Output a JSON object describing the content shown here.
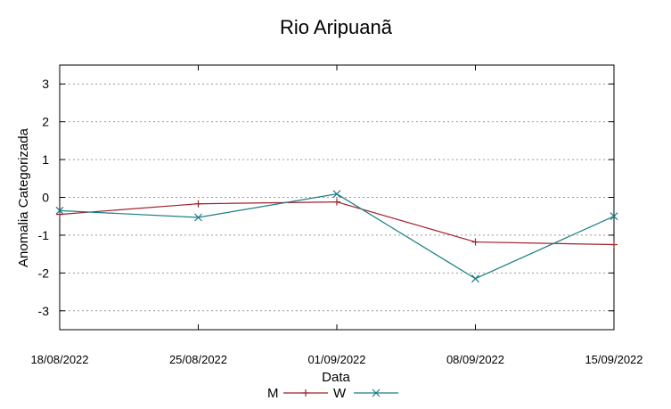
{
  "chart_data": {
    "type": "line",
    "title": "Rio Aripuanã",
    "xlabel": "Data",
    "ylabel": "Anomalia Categorizada",
    "categories": [
      "18/08/2022",
      "25/08/2022",
      "01/09/2022",
      "08/09/2022",
      "15/09/2022"
    ],
    "yticks": [
      "-3",
      "-2",
      "-1",
      "0",
      "1",
      "2",
      "3"
    ],
    "ylim": [
      -3.5,
      3.5
    ],
    "grid": "horizontal dotted",
    "legend_placement": "bottom-center",
    "series": [
      {
        "name": "M",
        "color": "#a0202a",
        "marker": "plus",
        "x": [
          "18/08/2022",
          "25/08/2022",
          "01/09/2022",
          "08/09/2022",
          "15/09/2022"
        ],
        "values": [
          -0.45,
          -0.17,
          -0.12,
          -1.18,
          -1.25
        ]
      },
      {
        "name": "W",
        "color": "#1a7d83",
        "marker": "cross",
        "x": [
          "18/08/2022",
          "25/08/2022",
          "01/09/2022",
          "08/09/2022",
          "15/09/2022"
        ],
        "values": [
          -0.35,
          -0.53,
          0.09,
          -2.15,
          -0.5
        ]
      }
    ]
  }
}
